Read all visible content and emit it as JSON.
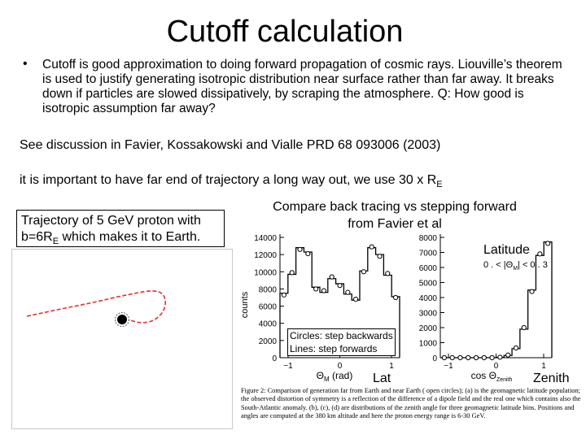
{
  "title": "Cutoff calculation",
  "bullet": {
    "marker": "•",
    "text": "Cutoff is good approximation to doing forward propagation of cosmic rays. Liouville’s theorem is used to justify generating isotropic distribution near surface rather than far away. It breaks down if particles are slowed dissipatively, by scraping the atmosphere. Q: How good is isotropic assumption far away?"
  },
  "discussion": "See discussion in Favier, Kossakowski and Vialle PRD 68 093006 (2003)",
  "far_end": {
    "text": "it is important to have far end of trajectory a long way out, we use 30 x R",
    "subscript": "E"
  },
  "trajectory_caption": {
    "line1": "Trajectory of 5 GeV proton with",
    "line2_pre": "b=6R",
    "line2_sub": "E",
    "line2_post": " which makes it to Earth."
  },
  "compare_caption": {
    "line1": "Compare back tracing vs stepping forward",
    "line2": "from Favier et al"
  },
  "panel_a": {
    "y_ticks": [
      "14000",
      "12000",
      "10000",
      "8000",
      "6000",
      "4000",
      "2000",
      "0"
    ],
    "y_label": "counts",
    "x_ticks": [
      "−1",
      "0",
      "1"
    ],
    "x_label": "Θ",
    "x_label_sub": "M",
    "x_label_unit": " (rad)",
    "counts_lines": [
      7500,
      9700,
      12800,
      12300,
      8200,
      7600,
      9200,
      8600,
      7400,
      6700,
      10100,
      12800,
      12000,
      9600,
      7100
    ],
    "counts_circles": [
      7300,
      9900,
      12600,
      12100,
      8000,
      7800,
      9400,
      8400,
      7600,
      6800,
      10000,
      12900,
      11800,
      9800,
      7000
    ]
  },
  "panel_b": {
    "y_ticks": [
      "8000",
      "7000",
      "6000",
      "5000",
      "4000",
      "3000",
      "2000",
      "1000",
      "0"
    ],
    "x_ticks": [
      "−1",
      "0",
      "1"
    ],
    "x_label": "cos Θ",
    "x_label_sub": "Zenith",
    "range_label": "0 . < |Θ",
    "range_label_sub": "M",
    "range_label_post": "| < 0 . 3",
    "counts_lines": [
      0,
      0,
      0,
      0,
      0,
      0,
      0,
      20,
      150,
      600,
      1900,
      4500,
      6800,
      7700
    ],
    "counts_circles": [
      0,
      0,
      0,
      0,
      0,
      0,
      0,
      30,
      180,
      650,
      2000,
      4400,
      6900,
      7600
    ]
  },
  "latitude_label": "Latitude",
  "legend": {
    "circles": "Circles: step backwards",
    "lines": "Lines: step forwards"
  },
  "lat_label": "Lat",
  "zenith_label": "Zenith",
  "figure_caption": "Figure 2: Comparison of generation far from Earth and near Earth ( open circles); (a) is the geomagnetic latitude population; the observed distortion of symmetry is a reflection of the difference of a dipole field and the real one which contains also the South-Atlantic anomaly. (b), (c), (d) are distributions of the zenith angle for three geomagnetic latitude bins. Positions and angles are computed at the 380 km altitude and here the proton energy range is 6-30 GeV.",
  "colors": {
    "trajectory": "#e03030",
    "earth": "#000000",
    "plot": "#000000"
  }
}
